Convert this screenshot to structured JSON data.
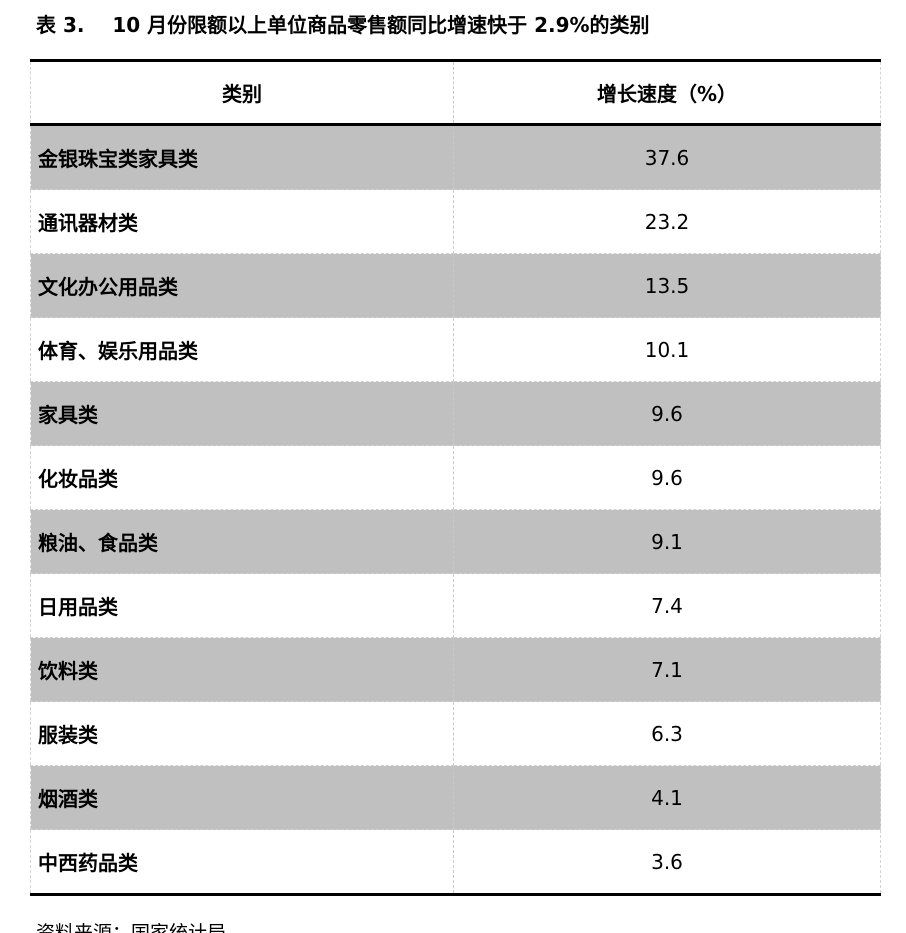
{
  "page": {
    "title": "表 3.    10 月份限额以上单位商品零售额同比增速快于 2.9%的类别",
    "source_note": "资料来源：国家统计局"
  },
  "table": {
    "columns": [
      {
        "label": "类别"
      },
      {
        "label": "增长速度（%）"
      }
    ],
    "rows": [
      {
        "category": "金银珠宝类家具类",
        "value": "37.6"
      },
      {
        "category": "通讯器材类",
        "value": "23.2"
      },
      {
        "category": "文化办公用品类",
        "value": "13.5"
      },
      {
        "category": "体育、娱乐用品类",
        "value": "10.1"
      },
      {
        "category": "家具类",
        "value": "9.6"
      },
      {
        "category": "化妆品类",
        "value": "9.6"
      },
      {
        "category": "粮油、食品类",
        "value": "9.1"
      },
      {
        "category": "日用品类",
        "value": "7.4"
      },
      {
        "category": "饮料类",
        "value": "7.1"
      },
      {
        "category": "服装类",
        "value": "6.3"
      },
      {
        "category": "烟酒类",
        "value": "4.1"
      },
      {
        "category": "中西药品类",
        "value": "3.6"
      }
    ]
  },
  "chart_data": {
    "type": "table",
    "title": "表 3. 10 月份限额以上单位商品零售额同比增速快于 2.9%的类别",
    "columns": [
      "类别",
      "增长速度（%）"
    ],
    "categories": [
      "金银珠宝类家具类",
      "通讯器材类",
      "文化办公用品类",
      "体育、娱乐用品类",
      "家具类",
      "化妆品类",
      "粮油、食品类",
      "日用品类",
      "饮料类",
      "服装类",
      "烟酒类",
      "中西药品类"
    ],
    "values": [
      37.6,
      23.2,
      13.5,
      10.1,
      9.6,
      9.6,
      9.1,
      7.4,
      7.1,
      6.3,
      4.1,
      3.6
    ],
    "source": "国家统计局"
  },
  "colors": {
    "row_shading": "#c0c0c0",
    "heavy_border": "#000000",
    "dashed_grid": "#c9c9c9",
    "text": "#000000",
    "background": "#ffffff"
  }
}
